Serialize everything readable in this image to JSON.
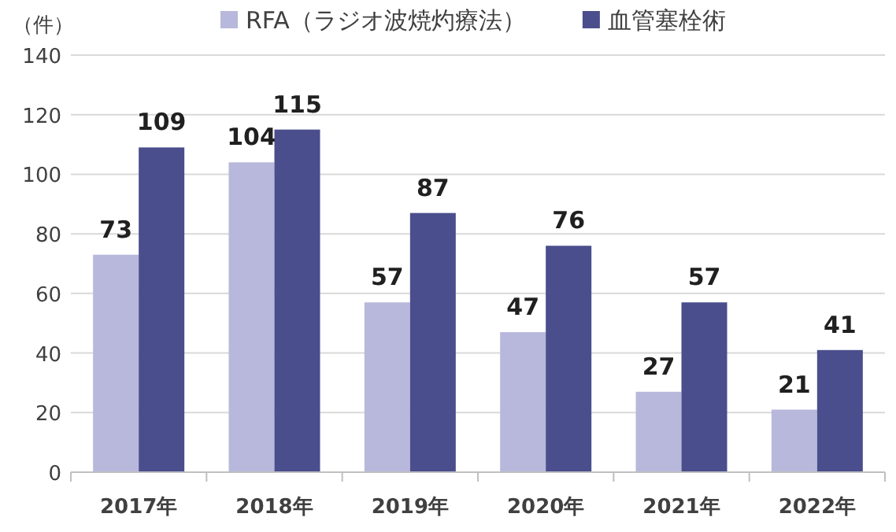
{
  "chart_data": {
    "type": "bar",
    "ylabel": "（件）",
    "categories": [
      "2017年",
      "2018年",
      "2019年",
      "2020年",
      "2021年",
      "2022年"
    ],
    "series": [
      {
        "name": "RFA（ラジオ波焼灼療法）",
        "color": "#b8b8dc",
        "values": [
          73,
          104,
          57,
          47,
          27,
          21
        ]
      },
      {
        "name": "血管塞栓術",
        "color": "#4a4e8c",
        "values": [
          109,
          115,
          87,
          76,
          57,
          41
        ]
      }
    ],
    "ylim": [
      0,
      140
    ],
    "yticks": [
      0,
      20,
      40,
      60,
      80,
      100,
      120,
      140
    ],
    "grid": "y",
    "legend": "top",
    "data_labels": true
  }
}
